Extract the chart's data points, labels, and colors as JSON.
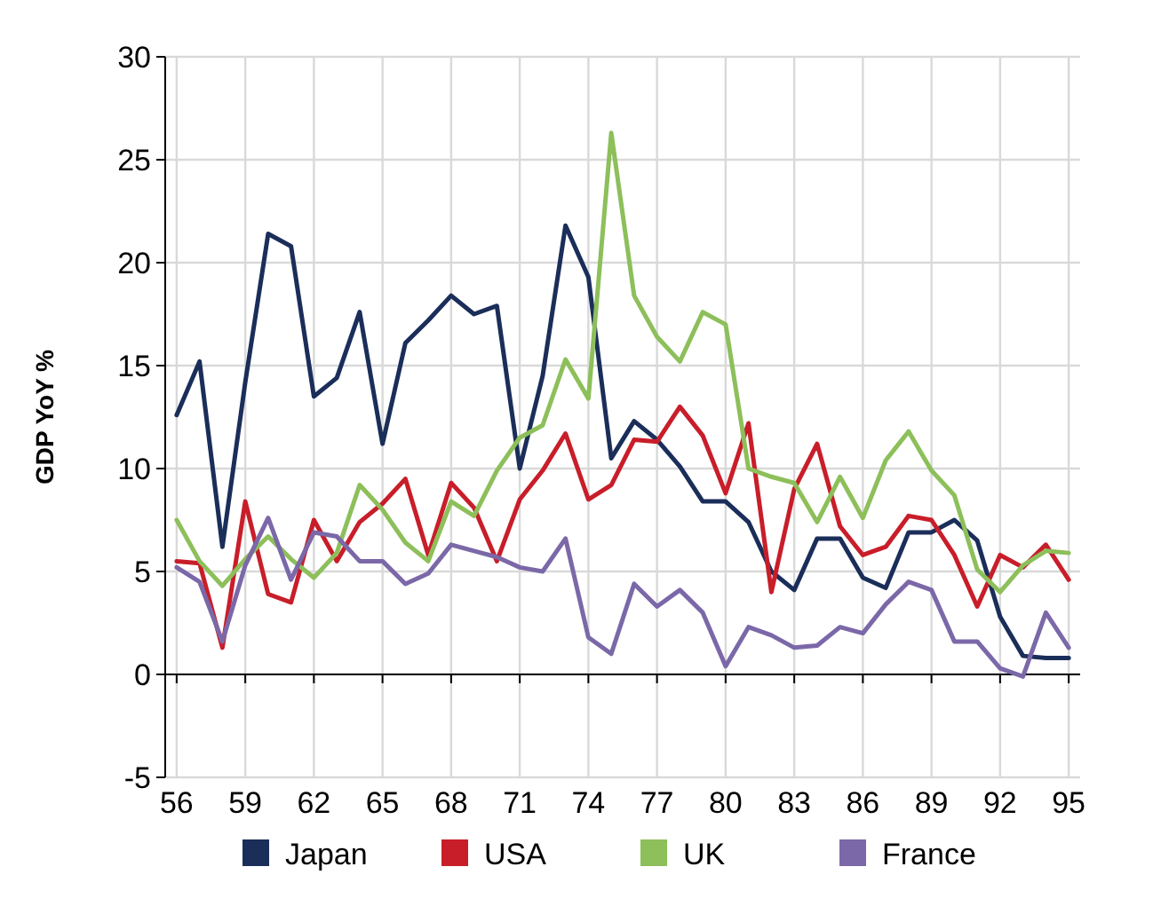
{
  "chart_data": {
    "type": "line",
    "ylabel": "GDP YoY %",
    "x": [
      56,
      57,
      58,
      59,
      60,
      61,
      62,
      63,
      64,
      65,
      66,
      67,
      68,
      69,
      70,
      71,
      72,
      73,
      74,
      75,
      76,
      77,
      78,
      79,
      80,
      81,
      82,
      83,
      84,
      85,
      86,
      87,
      88,
      89,
      90,
      91,
      92,
      93,
      94,
      95
    ],
    "xlim": [
      55.5,
      95.5
    ],
    "xticks": [
      56,
      59,
      62,
      65,
      68,
      71,
      74,
      77,
      80,
      83,
      86,
      89,
      92,
      95
    ],
    "ylim": [
      -5,
      30
    ],
    "yticks": [
      -5,
      0,
      5,
      10,
      15,
      20,
      25,
      30
    ],
    "grid": true,
    "legend": "bottom",
    "marker": "none",
    "line_style": "solid",
    "series": [
      {
        "name": "Japan",
        "color": "#1b2e5a",
        "values": [
          12.6,
          15.2,
          6.2,
          14.2,
          21.4,
          20.8,
          13.5,
          14.4,
          17.6,
          11.2,
          16.1,
          17.2,
          18.4,
          17.5,
          17.9,
          10.0,
          14.5,
          21.8,
          19.3,
          10.5,
          12.3,
          11.4,
          10.1,
          8.4,
          8.4,
          7.4,
          5.0,
          4.1,
          6.6,
          6.6,
          4.7,
          4.2,
          6.9,
          6.9,
          7.5,
          6.5,
          2.8,
          0.9,
          0.8,
          0.8
        ]
      },
      {
        "name": "USA",
        "color": "#c81e2a",
        "values": [
          5.5,
          5.4,
          1.3,
          8.4,
          3.9,
          3.5,
          7.5,
          5.5,
          7.4,
          8.3,
          9.5,
          5.8,
          9.3,
          8.1,
          5.5,
          8.5,
          9.9,
          11.7,
          8.5,
          9.2,
          11.4,
          11.3,
          13.0,
          11.6,
          8.8,
          12.2,
          4.0,
          9.0,
          11.2,
          7.2,
          5.8,
          6.2,
          7.7,
          7.5,
          5.8,
          3.3,
          5.8,
          5.2,
          6.3,
          4.6
        ]
      },
      {
        "name": "UK",
        "color": "#8dbf5a",
        "values": [
          7.5,
          5.5,
          4.3,
          5.6,
          6.7,
          5.6,
          4.7,
          5.9,
          9.2,
          8.0,
          6.4,
          5.5,
          8.4,
          7.7,
          9.9,
          11.5,
          12.1,
          15.3,
          13.4,
          26.3,
          18.4,
          16.4,
          15.2,
          17.6,
          17.0,
          10.0,
          9.6,
          9.3,
          7.4,
          9.6,
          7.6,
          10.4,
          11.8,
          9.9,
          8.7,
          5.1,
          4.0,
          5.3,
          6.0,
          5.9
        ]
      },
      {
        "name": "France",
        "color": "#7b68a8",
        "values": [
          5.2,
          4.5,
          1.6,
          5.3,
          7.6,
          4.6,
          6.9,
          6.7,
          5.5,
          5.5,
          4.4,
          4.9,
          6.3,
          6.0,
          5.7,
          5.2,
          5.0,
          6.6,
          1.8,
          1.0,
          4.4,
          3.3,
          4.1,
          3.0,
          0.4,
          2.3,
          1.9,
          1.3,
          1.4,
          2.3,
          2.0,
          3.4,
          4.5,
          4.1,
          1.6,
          1.6,
          0.3,
          -0.1,
          3.0,
          1.3
        ]
      }
    ]
  }
}
